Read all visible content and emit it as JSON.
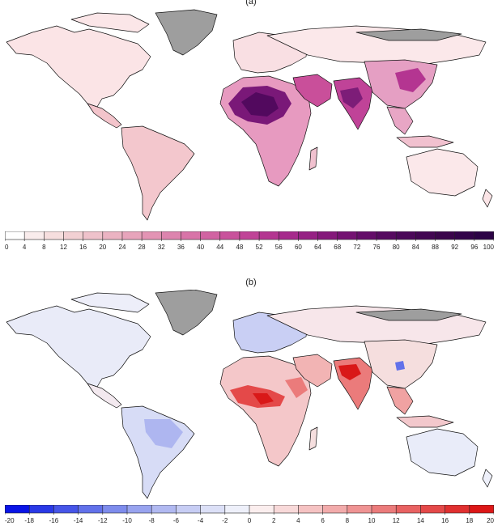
{
  "panel_a": {
    "label": "(a)",
    "colorbar": {
      "ticks": [
        "0",
        "4",
        "8",
        "12",
        "16",
        "20",
        "24",
        "28",
        "32",
        "36",
        "40",
        "44",
        "48",
        "52",
        "56",
        "60",
        "64",
        "68",
        "72",
        "76",
        "80",
        "84",
        "88",
        "92",
        "96",
        "100"
      ],
      "colors": [
        "#ffffff",
        "#f9ecec",
        "#f6dede",
        "#f2d0d3",
        "#efc2cb",
        "#ebb3c2",
        "#e7a4bb",
        "#e394b4",
        "#dd84ae",
        "#d874a8",
        "#d163a2",
        "#c9529c",
        "#c04397",
        "#b43591",
        "#a62a8c",
        "#962184",
        "#85197b",
        "#741272",
        "#640d69",
        "#560a60",
        "#4b0859",
        "#420652",
        "#3a054b",
        "#33044a",
        "#2c0346"
      ]
    }
  },
  "panel_b": {
    "label": "(b)",
    "colorbar": {
      "ticks": [
        "-20",
        "-18",
        "-16",
        "-14",
        "-12",
        "-10",
        "-8",
        "-6",
        "-4",
        "-2",
        "0",
        "2",
        "4",
        "6",
        "8",
        "10",
        "12",
        "14",
        "16",
        "18",
        "20"
      ],
      "colors": [
        "#0a14e6",
        "#2a39e6",
        "#4655e8",
        "#6271ea",
        "#7e8cec",
        "#98a3ef",
        "#b1b9f1",
        "#c7cdf4",
        "#dce0f7",
        "#eef0fa",
        "#fbeeee",
        "#f8d9d9",
        "#f5c2c2",
        "#f2abab",
        "#ef9393",
        "#eb7b7b",
        "#e86262",
        "#e44949",
        "#e03030",
        "#dc1717"
      ]
    }
  },
  "colors": {
    "land_a": "#f8e2e4",
    "land_b": "#f5eef3",
    "ice": "#9e9e9e",
    "border": "#111111"
  }
}
